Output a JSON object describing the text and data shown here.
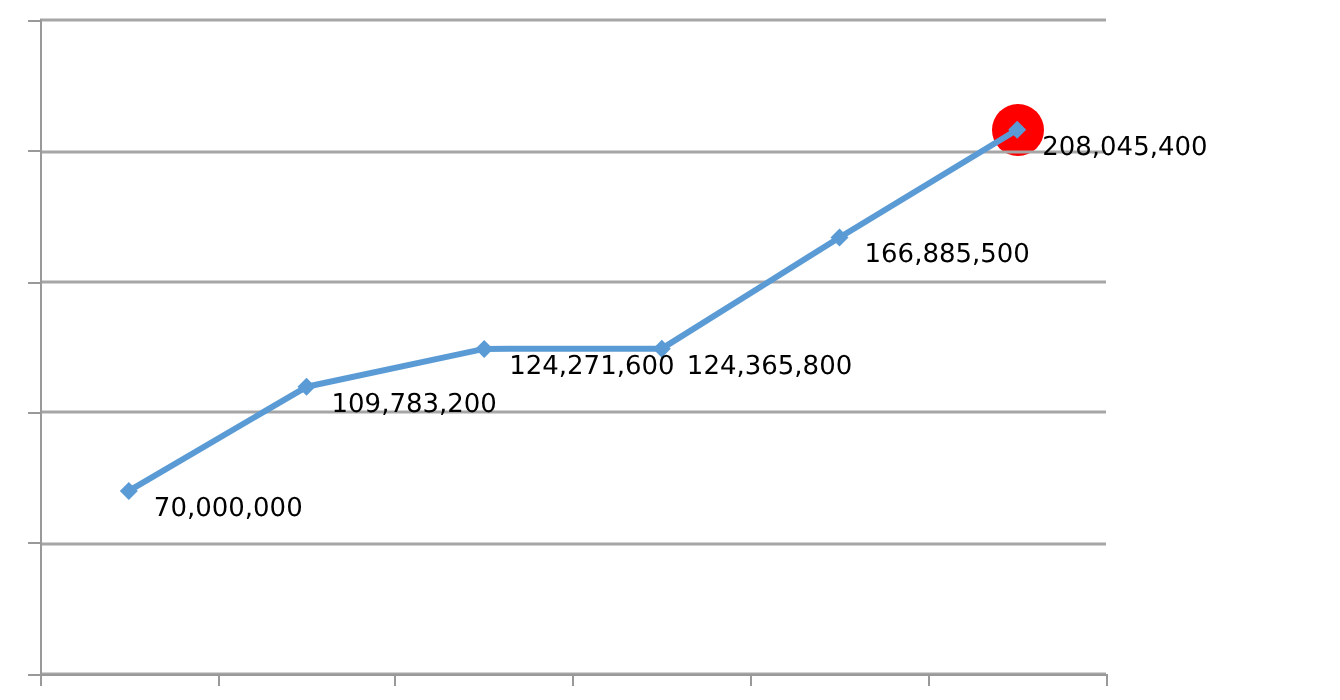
{
  "chart_data": {
    "type": "line",
    "categories": [
      null,
      null,
      null,
      null,
      null,
      null
    ],
    "series": [
      {
        "color": "#5b9bd5",
        "values": [
          70000000,
          109783200,
          124271600,
          124365800,
          166885500,
          208045400
        ],
        "value_labels": [
          "70,000,000",
          "109,783,200",
          "124,271,600",
          "124,365,800",
          "166,885,500",
          "208,045,400"
        ]
      }
    ],
    "ylim": [
      0,
      250000000
    ],
    "yticks": [
      {
        "value": 0,
        "label": null
      },
      {
        "value": 50000000,
        "label": null
      },
      {
        "value": 100000000,
        "label": null
      },
      {
        "value": 150000000,
        "label": null
      },
      {
        "value": 200000000,
        "label": null
      },
      {
        "value": 250000000,
        "label": null
      }
    ],
    "grid": "y",
    "marker": "diamond",
    "line_style": "solid"
  }
}
